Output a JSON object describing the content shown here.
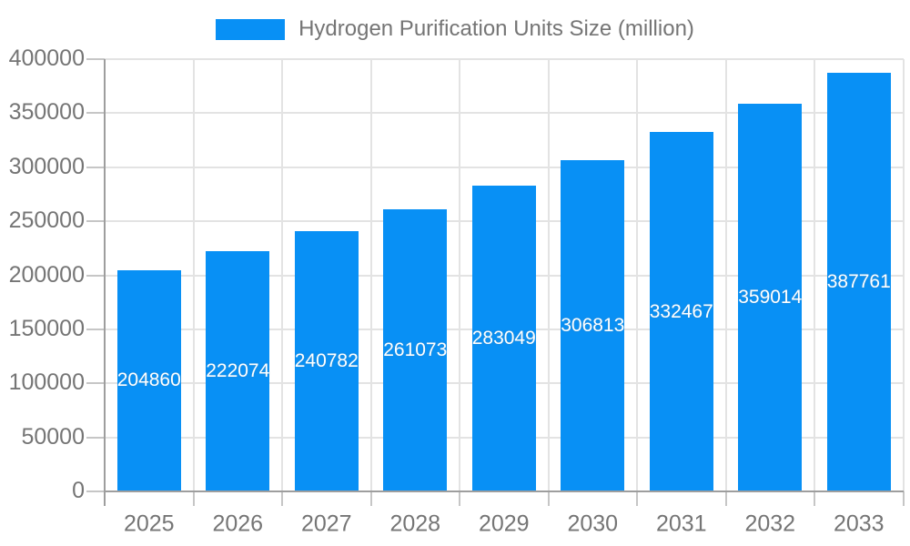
{
  "chart_data": {
    "type": "bar",
    "title": "Hydrogen Purification Units Size (million)",
    "categories": [
      "2025",
      "2026",
      "2027",
      "2028",
      "2029",
      "2030",
      "2031",
      "2032",
      "2033"
    ],
    "values": [
      204860,
      222074,
      240782,
      261073,
      283049,
      306813,
      332467,
      359014,
      387761
    ],
    "bar_labels": [
      "204860",
      "222074",
      "240782",
      "261073",
      "283049",
      "306813",
      "332467",
      "359014",
      "387761"
    ],
    "xlabel": "",
    "ylabel": "",
    "ylim": [
      0,
      400000
    ],
    "yticks": [
      0,
      50000,
      100000,
      150000,
      200000,
      250000,
      300000,
      350000,
      400000
    ],
    "grid": true,
    "legend_position": "top-center",
    "bar_value_labels_visible": true
  },
  "legend": {
    "label": "Hydrogen Purification Units Size (million)"
  },
  "colors": {
    "bar": "#0890f5",
    "grid_line": "#e3e3e3",
    "axis_line": "#9e9e9e",
    "tick_line": "#c6c6c6",
    "axis_text": "#757575",
    "bar_label_text": "#ffffff",
    "background": "#ffffff"
  }
}
